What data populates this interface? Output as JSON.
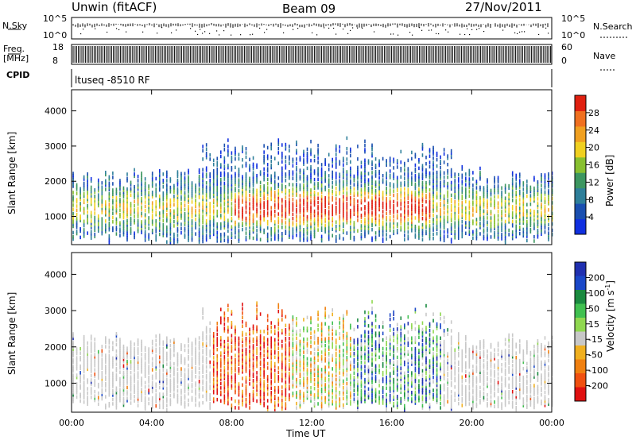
{
  "header": {
    "title_left": "Unwin (fitACF)",
    "title_center": "Beam 09",
    "title_right": "27/Nov/2011"
  },
  "top_panels": {
    "nsky_label": "N.Sky",
    "nsky_ticks": [
      "10^5",
      "10^0"
    ],
    "nsearch_label": "N.Search",
    "freq_label_1": "Freq.",
    "freq_label_2": "[MHz]",
    "freq_ticks": [
      "18",
      "8"
    ],
    "nave_label": "Nave",
    "nave_ticks": [
      "60",
      "0"
    ],
    "cpid_label": "CPID",
    "cpid_text": "ltuseq -8510 RF"
  },
  "chart_data": [
    {
      "type": "heatmap",
      "name": "power-panel",
      "ylabel": "Slant Range [km]",
      "yticks": [
        1000,
        2000,
        3000,
        4000
      ],
      "ylim": [
        200,
        4600
      ],
      "xlim": [
        0,
        24
      ],
      "colorbar": {
        "label": "Power [dB]",
        "ticks": [
          "4",
          "8",
          "12",
          "16",
          "20",
          "24",
          "28"
        ],
        "colors": [
          "#1030e0",
          "#1a4fb0",
          "#2e7f9a",
          "#3c9660",
          "#88c030",
          "#f0d020",
          "#f0a020",
          "#f07020",
          "#e02010"
        ]
      }
    },
    {
      "type": "heatmap",
      "name": "velocity-panel",
      "ylabel": "Slant Range [km]",
      "yticks": [
        1000,
        2000,
        3000,
        4000
      ],
      "ylim": [
        200,
        4600
      ],
      "xlim": [
        0,
        24
      ],
      "xlabel": "Time UT",
      "xticks": [
        "00:00",
        "04:00",
        "08:00",
        "12:00",
        "16:00",
        "20:00",
        "00:00"
      ],
      "colorbar": {
        "label": "Velocity [m s",
        "label_sup": "-1",
        "label_end": "]",
        "ticks": [
          "200",
          "100",
          "50",
          "15",
          "-15",
          "-50",
          "-100",
          "-200"
        ],
        "colors": [
          "#2030b0",
          "#1a48c8",
          "#1a8a40",
          "#40c050",
          "#90d850",
          "#c8c8c8",
          "#f0b020",
          "#f08010",
          "#f05010",
          "#e01010"
        ]
      }
    }
  ]
}
